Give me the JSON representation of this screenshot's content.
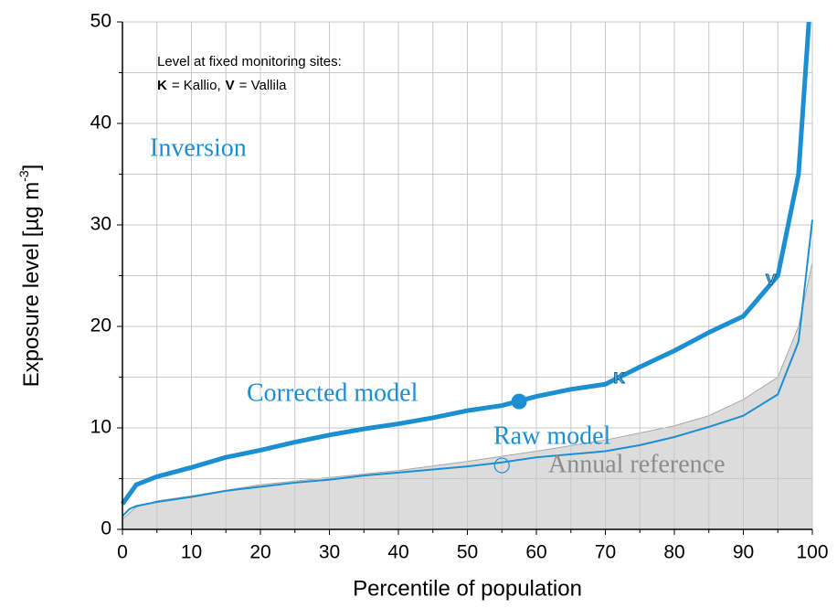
{
  "chart_data": {
    "type": "line",
    "x_label": "Percentile of population",
    "y_label": [
      "Exposure level [µg m",
      "-3",
      "]"
    ],
    "xlim": [
      0,
      100
    ],
    "ylim": [
      0,
      50
    ],
    "xticks": [
      0,
      10,
      20,
      30,
      40,
      50,
      60,
      70,
      80,
      90,
      100
    ],
    "yticks": [
      0,
      10,
      20,
      30,
      40,
      50
    ],
    "x_minor_ticks": [
      5,
      15,
      25,
      35,
      45,
      55,
      65,
      75,
      85,
      95
    ],
    "y_minor_ticks": [
      5,
      15,
      25,
      35,
      45
    ],
    "grid": true,
    "series": [
      {
        "name": "Annual reference",
        "kind": "area",
        "color": "#dcdcdc",
        "x": [
          0,
          2,
          5,
          10,
          20,
          30,
          40,
          50,
          60,
          70,
          80,
          85,
          90,
          95,
          98,
          100
        ],
        "values": [
          1,
          2.2,
          2.8,
          3.3,
          4.4,
          5.1,
          5.8,
          6.7,
          7.7,
          8.8,
          10.2,
          11.2,
          12.8,
          15,
          20,
          26.3
        ]
      },
      {
        "name": "Raw model",
        "kind": "line",
        "color": "#1b8fd2",
        "width": 2,
        "x": [
          0,
          1,
          2,
          5,
          10,
          15,
          20,
          25,
          30,
          35,
          40,
          45,
          50,
          55,
          60,
          65,
          70,
          75,
          80,
          85,
          90,
          95,
          98,
          100
        ],
        "values": [
          1.3,
          2,
          2.3,
          2.7,
          3.2,
          3.8,
          4.2,
          4.6,
          4.9,
          5.3,
          5.6,
          5.9,
          6.2,
          6.6,
          7.1,
          7.4,
          7.7,
          8.3,
          9.1,
          10.1,
          11.2,
          13.3,
          18.5,
          30.5
        ]
      },
      {
        "name": "Corrected model",
        "kind": "line",
        "color": "#1b8fd2",
        "width": 5,
        "x": [
          0,
          2,
          5,
          10,
          15,
          20,
          25,
          30,
          35,
          40,
          45,
          50,
          55,
          60,
          65,
          70,
          75,
          80,
          85,
          90,
          95,
          98,
          99.5
        ],
        "values": [
          2.5,
          4.4,
          5.2,
          6.1,
          7.1,
          7.8,
          8.6,
          9.3,
          9.9,
          10.4,
          11,
          11.7,
          12.2,
          13.1,
          13.8,
          14.3,
          16,
          17.6,
          19.4,
          21,
          25,
          35,
          50
        ]
      }
    ],
    "points": [
      {
        "x": 57.5,
        "y": 12.6,
        "style": "filled"
      },
      {
        "x": 55,
        "y": 6.3,
        "style": "hollow"
      }
    ],
    "site_markers": [
      {
        "label": "K",
        "x": 72,
        "y": 14.8
      },
      {
        "label": "V",
        "x": 94,
        "y": 24.5
      }
    ],
    "annotations": [
      "Inversion",
      "Corrected model",
      "Raw model",
      "Annual reference"
    ],
    "note": {
      "title": "Level at fixed monitoring sites:",
      "items": [
        {
          "symbol": "K",
          "label": "= Kallio,"
        },
        {
          "symbol": "V",
          "label": "= Vallila"
        }
      ]
    }
  }
}
